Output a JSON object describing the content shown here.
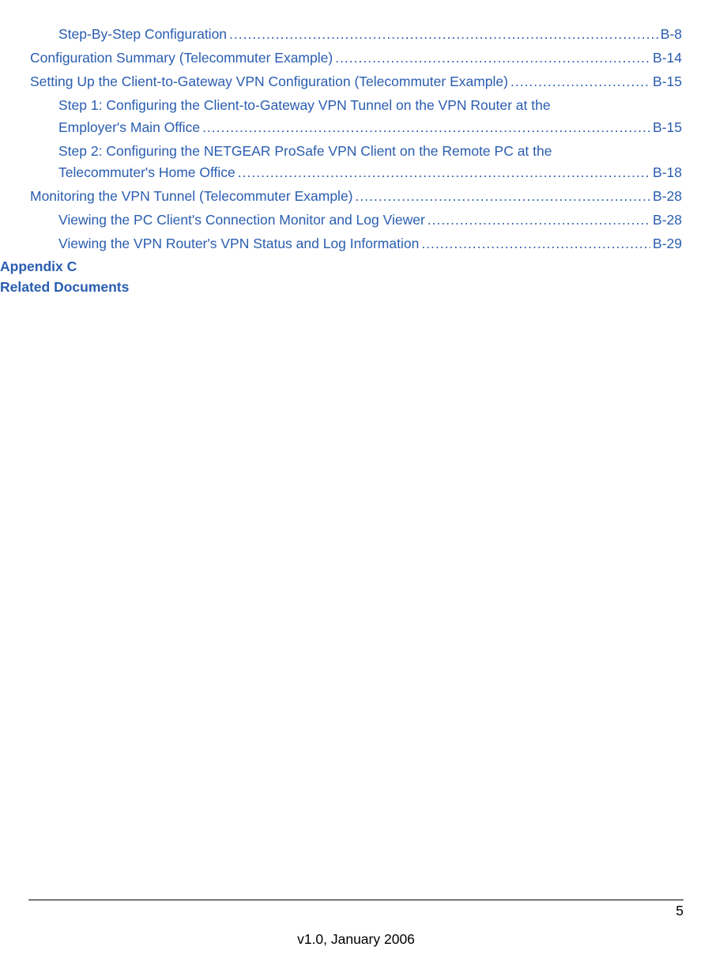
{
  "toc": [
    {
      "level": 2,
      "text": "Step-By-Step Configuration",
      "page": "B-8",
      "wrap": false
    },
    {
      "level": 1,
      "text": "Configuration Summary (Telecommuter Example)",
      "page": "B-14",
      "wrap": false
    },
    {
      "level": 1,
      "text": "Setting Up the Client-to-Gateway VPN Configuration (Telecommuter Example)",
      "page": "B-15",
      "wrap": false
    },
    {
      "level": 2,
      "first": "Step 1: Configuring the Client-to-Gateway VPN Tunnel on the VPN Router at the",
      "second": "Employer's Main Office",
      "page": "B-15",
      "wrap": true
    },
    {
      "level": 2,
      "first": "Step 2: Configuring the NETGEAR ProSafe VPN Client on the Remote PC at the",
      "second": "Telecommuter's Home Office",
      "page": "B-18",
      "wrap": true
    },
    {
      "level": 1,
      "text": "Monitoring the VPN Tunnel (Telecommuter Example)",
      "page": "B-28",
      "wrap": false
    },
    {
      "level": 2,
      "text": "Viewing the PC Client's Connection Monitor and Log Viewer",
      "page": "B-28",
      "wrap": false
    },
    {
      "level": 2,
      "text": "Viewing the VPN Router's VPN Status and Log Information",
      "page": "B-29",
      "wrap": false
    }
  ],
  "appendix": {
    "line1": "Appendix C",
    "line2": "Related Documents"
  },
  "footer": {
    "page_number": "5",
    "version": "v1.0, January 2006"
  },
  "colors": {
    "link": "#2a5db0",
    "text": "#000000",
    "background": "#ffffff"
  }
}
